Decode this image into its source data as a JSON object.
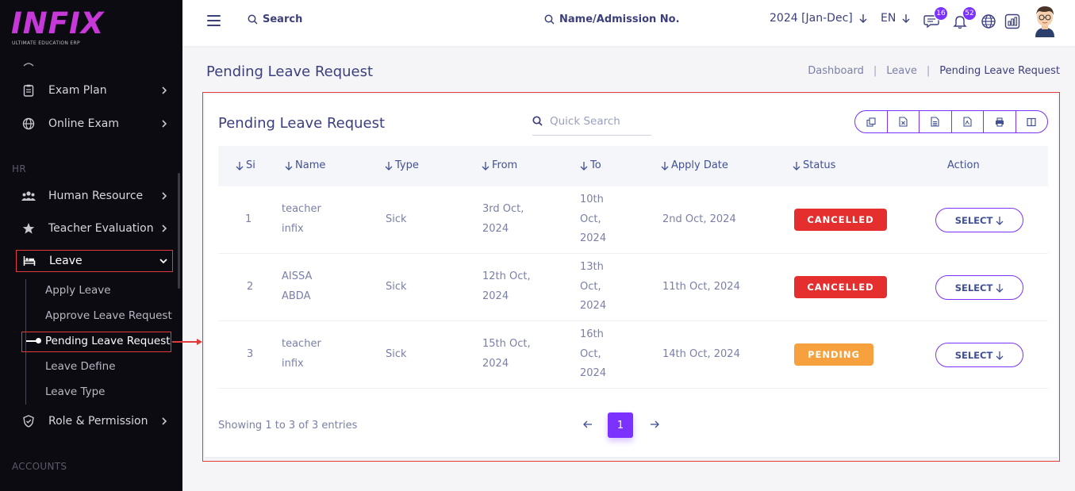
{
  "brand": {
    "logo_text": "INFIX",
    "logo_sub": "ULTIMATE EDUCATION ERP",
    "logo_color": "#c738d8"
  },
  "sidebar": {
    "items": [
      {
        "label": "Exam Plan",
        "icon": "clipboard-icon"
      },
      {
        "label": "Online Exam",
        "icon": "globe-icon"
      },
      {
        "label": "Human Resource",
        "icon": "users-icon"
      },
      {
        "label": "Teacher Evaluation",
        "icon": "star-icon"
      },
      {
        "label": "Leave",
        "icon": "bed-icon"
      },
      {
        "label": "Role & Permission",
        "icon": "shield-icon"
      }
    ],
    "sections": {
      "hr": "HR",
      "accounts": "ACCOUNTS"
    },
    "leave_sub": [
      "Apply Leave",
      "Approve Leave Request",
      "Pending Leave Request",
      "Leave Define",
      "Leave Type"
    ],
    "active_sub": "Pending Leave Request"
  },
  "topbar": {
    "search_label": "Search",
    "search2_label": "Name/Admission No.",
    "year": "2024 [Jan-Dec]",
    "lang": "EN",
    "chat_badge": "16",
    "notif_badge": "52"
  },
  "page": {
    "title": "Pending Leave Request",
    "breadcrumb": [
      "Dashboard",
      "Leave",
      "Pending Leave Request"
    ]
  },
  "card": {
    "title": "Pending Leave Request",
    "search_placeholder": "Quick Search",
    "export_buttons": [
      "copy-icon",
      "excel-icon",
      "csv-icon",
      "pdf-icon",
      "print-icon",
      "columns-icon"
    ],
    "columns": [
      "Si",
      "Name",
      "Type",
      "From",
      "To",
      "Apply Date",
      "Status",
      "Action"
    ],
    "rows": [
      {
        "si": "1",
        "name": [
          "teacher",
          "infix"
        ],
        "type": "Sick",
        "from": [
          "3rd Oct,",
          "2024"
        ],
        "to": [
          "10th",
          "Oct,",
          "2024"
        ],
        "apply_date": "2nd Oct, 2024",
        "status": "CANCELLED",
        "status_kind": "cancelled",
        "action": "SELECT"
      },
      {
        "si": "2",
        "name": [
          "AISSA",
          "ABDA"
        ],
        "type": "Sick",
        "from": [
          "12th Oct,",
          "2024"
        ],
        "to": [
          "13th",
          "Oct,",
          "2024"
        ],
        "apply_date": "11th Oct, 2024",
        "status": "CANCELLED",
        "status_kind": "cancelled",
        "action": "SELECT"
      },
      {
        "si": "3",
        "name": [
          "teacher",
          "infix"
        ],
        "type": "Sick",
        "from": [
          "15th Oct,",
          "2024"
        ],
        "to": [
          "16th",
          "Oct,",
          "2024"
        ],
        "apply_date": "14th Oct, 2024",
        "status": "PENDING",
        "status_kind": "pending",
        "action": "SELECT"
      }
    ],
    "entries": "Showing 1 to 3 of 3 entries",
    "current_page": "1"
  },
  "colors": {
    "accent": "#7c32ff",
    "cancelled": "#e52e2e",
    "pending": "#f7a03e",
    "highlight": "#e03a3a"
  }
}
